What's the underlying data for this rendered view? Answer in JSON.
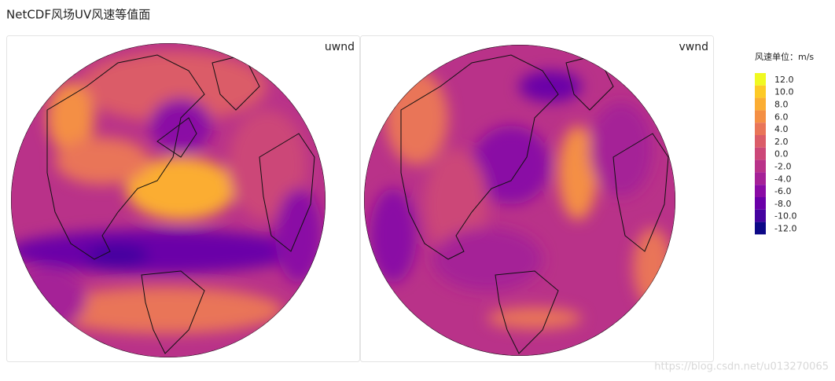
{
  "header": {
    "title": "NetCDF风场UV风速等值面"
  },
  "panels": [
    {
      "label": "uwnd"
    },
    {
      "label": "vwnd"
    }
  ],
  "legend": {
    "title": "风速单位：m/s",
    "items": [
      {
        "label": "12.0",
        "color": "#f0f921"
      },
      {
        "label": "10.0",
        "color": "#fdca26"
      },
      {
        "label": "8.0",
        "color": "#fbad33"
      },
      {
        "label": "6.0",
        "color": "#f48f44"
      },
      {
        "label": "4.0",
        "color": "#e97558"
      },
      {
        "label": "2.0",
        "color": "#db5c68"
      },
      {
        "label": "0.0",
        "color": "#cc4778"
      },
      {
        "label": "-2.0",
        "color": "#b93289"
      },
      {
        "label": "-4.0",
        "color": "#a52197"
      },
      {
        "label": "-6.0",
        "color": "#8a0ba5"
      },
      {
        "label": "-8.0",
        "color": "#6a00a8"
      },
      {
        "label": "-10.0",
        "color": "#4503a0"
      },
      {
        "label": "-12.0",
        "color": "#0d0887"
      }
    ]
  },
  "watermark": "https://blog.csdn.net/u013270065"
}
